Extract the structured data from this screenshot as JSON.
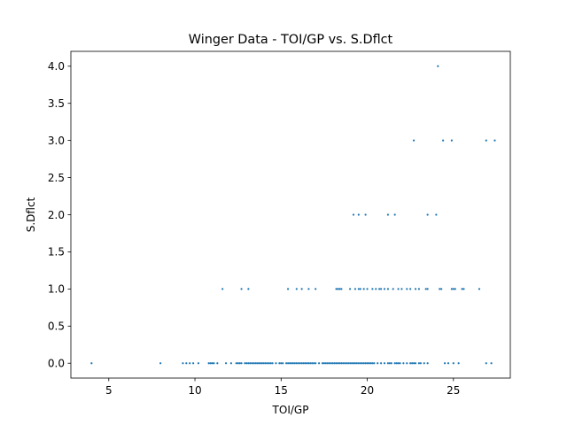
{
  "chart_data": {
    "type": "scatter",
    "title": "Winger Data - TOI/GP vs. S.Dflct",
    "xlabel": "TOI/GP",
    "ylabel": "S.Dflct",
    "xlim": [
      2.8,
      28.3
    ],
    "ylim": [
      -0.2,
      4.2
    ],
    "xticks": [
      5,
      10,
      15,
      20,
      25
    ],
    "yticks": [
      0.0,
      0.5,
      1.0,
      1.5,
      2.0,
      2.5,
      3.0,
      3.5,
      4.0
    ],
    "xtick_labels": [
      "5",
      "10",
      "15",
      "20",
      "25"
    ],
    "ytick_labels": [
      "0.0",
      "0.5",
      "1.0",
      "1.5",
      "2.0",
      "2.5",
      "3.0",
      "3.5",
      "4.0"
    ],
    "grid": false,
    "legend": false,
    "marker_color": "#1f77b4",
    "series": [
      {
        "points": [
          [
            4.0,
            0
          ],
          [
            8.0,
            0
          ],
          [
            9.3,
            0
          ],
          [
            9.5,
            0
          ],
          [
            9.7,
            0
          ],
          [
            9.9,
            0
          ],
          [
            10.2,
            0
          ],
          [
            10.8,
            0
          ],
          [
            10.9,
            0
          ],
          [
            11.0,
            0
          ],
          [
            11.1,
            0
          ],
          [
            11.3,
            0
          ],
          [
            11.8,
            0
          ],
          [
            12.1,
            0
          ],
          [
            12.4,
            0
          ],
          [
            12.5,
            0
          ],
          [
            12.6,
            0
          ],
          [
            12.7,
            0
          ],
          [
            12.9,
            0
          ],
          [
            13.0,
            0
          ],
          [
            13.1,
            0
          ],
          [
            13.2,
            0
          ],
          [
            13.3,
            0
          ],
          [
            13.4,
            0
          ],
          [
            13.5,
            0
          ],
          [
            13.6,
            0
          ],
          [
            13.7,
            0
          ],
          [
            13.8,
            0
          ],
          [
            13.9,
            0
          ],
          [
            14.0,
            0
          ],
          [
            14.1,
            0
          ],
          [
            14.2,
            0
          ],
          [
            14.3,
            0
          ],
          [
            14.4,
            0
          ],
          [
            14.5,
            0
          ],
          [
            14.7,
            0
          ],
          [
            14.9,
            0
          ],
          [
            15.0,
            0
          ],
          [
            15.1,
            0
          ],
          [
            15.3,
            0
          ],
          [
            15.4,
            0
          ],
          [
            15.5,
            0
          ],
          [
            15.6,
            0
          ],
          [
            15.7,
            0
          ],
          [
            15.8,
            0
          ],
          [
            15.9,
            0
          ],
          [
            16.0,
            0
          ],
          [
            16.1,
            0
          ],
          [
            16.2,
            0
          ],
          [
            16.3,
            0
          ],
          [
            16.4,
            0
          ],
          [
            16.5,
            0
          ],
          [
            16.6,
            0
          ],
          [
            16.7,
            0
          ],
          [
            16.8,
            0
          ],
          [
            16.9,
            0
          ],
          [
            17.0,
            0
          ],
          [
            17.2,
            0
          ],
          [
            17.4,
            0
          ],
          [
            17.5,
            0
          ],
          [
            17.6,
            0
          ],
          [
            17.7,
            0
          ],
          [
            17.8,
            0
          ],
          [
            17.9,
            0
          ],
          [
            18.0,
            0
          ],
          [
            18.1,
            0
          ],
          [
            18.2,
            0
          ],
          [
            18.3,
            0
          ],
          [
            18.4,
            0
          ],
          [
            18.5,
            0
          ],
          [
            18.6,
            0
          ],
          [
            18.7,
            0
          ],
          [
            18.8,
            0
          ],
          [
            18.9,
            0
          ],
          [
            19.0,
            0
          ],
          [
            19.1,
            0
          ],
          [
            19.2,
            0
          ],
          [
            19.3,
            0
          ],
          [
            19.4,
            0
          ],
          [
            19.5,
            0
          ],
          [
            19.6,
            0
          ],
          [
            19.7,
            0
          ],
          [
            19.8,
            0
          ],
          [
            19.9,
            0
          ],
          [
            20.0,
            0
          ],
          [
            20.1,
            0
          ],
          [
            20.2,
            0
          ],
          [
            20.3,
            0
          ],
          [
            20.4,
            0
          ],
          [
            20.6,
            0
          ],
          [
            20.8,
            0
          ],
          [
            21.0,
            0
          ],
          [
            21.2,
            0
          ],
          [
            21.3,
            0
          ],
          [
            21.4,
            0
          ],
          [
            21.6,
            0
          ],
          [
            21.7,
            0
          ],
          [
            21.8,
            0
          ],
          [
            21.9,
            0
          ],
          [
            22.1,
            0
          ],
          [
            22.3,
            0
          ],
          [
            22.5,
            0
          ],
          [
            22.6,
            0
          ],
          [
            22.7,
            0
          ],
          [
            22.8,
            0
          ],
          [
            23.0,
            0
          ],
          [
            23.1,
            0
          ],
          [
            23.3,
            0
          ],
          [
            23.5,
            0
          ],
          [
            24.5,
            0
          ],
          [
            24.7,
            0
          ],
          [
            25.0,
            0
          ],
          [
            25.3,
            0
          ],
          [
            26.9,
            0
          ],
          [
            27.2,
            0
          ],
          [
            11.6,
            1
          ],
          [
            12.7,
            1
          ],
          [
            13.1,
            1
          ],
          [
            15.4,
            1
          ],
          [
            15.9,
            1
          ],
          [
            16.2,
            1
          ],
          [
            16.6,
            1
          ],
          [
            17.0,
            1
          ],
          [
            18.2,
            1
          ],
          [
            18.3,
            1
          ],
          [
            18.4,
            1
          ],
          [
            18.5,
            1
          ],
          [
            19.0,
            1
          ],
          [
            19.3,
            1
          ],
          [
            19.5,
            1
          ],
          [
            19.6,
            1
          ],
          [
            19.8,
            1
          ],
          [
            20.0,
            1
          ],
          [
            20.3,
            1
          ],
          [
            20.5,
            1
          ],
          [
            20.7,
            1
          ],
          [
            20.8,
            1
          ],
          [
            21.0,
            1
          ],
          [
            21.2,
            1
          ],
          [
            21.5,
            1
          ],
          [
            21.8,
            1
          ],
          [
            22.0,
            1
          ],
          [
            22.3,
            1
          ],
          [
            22.5,
            1
          ],
          [
            22.8,
            1
          ],
          [
            23.0,
            1
          ],
          [
            23.4,
            1
          ],
          [
            23.5,
            1
          ],
          [
            24.2,
            1
          ],
          [
            24.3,
            1
          ],
          [
            24.9,
            1
          ],
          [
            25.0,
            1
          ],
          [
            25.1,
            1
          ],
          [
            25.5,
            1
          ],
          [
            25.6,
            1
          ],
          [
            26.5,
            1
          ],
          [
            19.2,
            2
          ],
          [
            19.5,
            2
          ],
          [
            19.9,
            2
          ],
          [
            21.2,
            2
          ],
          [
            21.6,
            2
          ],
          [
            23.5,
            2
          ],
          [
            24.0,
            2
          ],
          [
            22.7,
            3
          ],
          [
            24.4,
            3
          ],
          [
            24.9,
            3
          ],
          [
            26.9,
            3
          ],
          [
            27.4,
            3
          ],
          [
            24.1,
            4
          ]
        ]
      }
    ]
  }
}
